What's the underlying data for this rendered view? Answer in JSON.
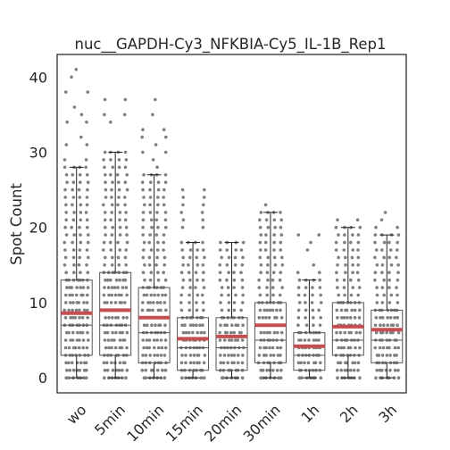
{
  "chart_data": {
    "type": "box",
    "title": "nuc__GAPDH-Cy3_NFKBIA-Cy5_IL-1B_Rep1",
    "xlabel": "",
    "ylabel": "Spot Count",
    "ylim": [
      -2,
      43
    ],
    "yticks": [
      0,
      10,
      20,
      30,
      40
    ],
    "categories": [
      "wo",
      "5min",
      "10min",
      "15min",
      "20min",
      "30min",
      "1h",
      "2h",
      "3h"
    ],
    "grid": false,
    "series": [
      {
        "boxes": [
          {
            "q1": 3,
            "median": 7,
            "q3": 13,
            "whisker_low": 0,
            "whisker_high": 28,
            "mean": 8.6,
            "max": 41
          },
          {
            "q1": 3,
            "median": 7,
            "q3": 14,
            "whisker_low": 0,
            "whisker_high": 30,
            "mean": 9.0,
            "max": 38
          },
          {
            "q1": 2,
            "median": 6,
            "q3": 12,
            "whisker_low": 0,
            "whisker_high": 27,
            "mean": 8.0,
            "max": 37
          },
          {
            "q1": 1,
            "median": 4,
            "q3": 8,
            "whisker_low": 0,
            "whisker_high": 18,
            "mean": 5.2,
            "max": 25
          },
          {
            "q1": 1,
            "median": 4,
            "q3": 8,
            "whisker_low": 0,
            "whisker_high": 18,
            "mean": 5.5,
            "max": 20
          },
          {
            "q1": 2,
            "median": 5,
            "q3": 10,
            "whisker_low": 0,
            "whisker_high": 22,
            "mean": 7.0,
            "max": 23
          },
          {
            "q1": 1,
            "median": 3,
            "q3": 6,
            "whisker_low": 0,
            "whisker_high": 13,
            "mean": 4.2,
            "max": 19
          },
          {
            "q1": 3,
            "median": 5,
            "q3": 10,
            "whisker_low": 0,
            "whisker_high": 20,
            "mean": 6.8,
            "max": 23
          },
          {
            "q1": 2,
            "median": 5,
            "q3": 9,
            "whisker_low": 0,
            "whisker_high": 19,
            "mean": 6.4,
            "max": 22
          }
        ]
      }
    ],
    "colors": {
      "box_edge": "#555555",
      "mean_line": "#c44e52",
      "points": "#7f7f7f",
      "axes": "#262626"
    }
  }
}
